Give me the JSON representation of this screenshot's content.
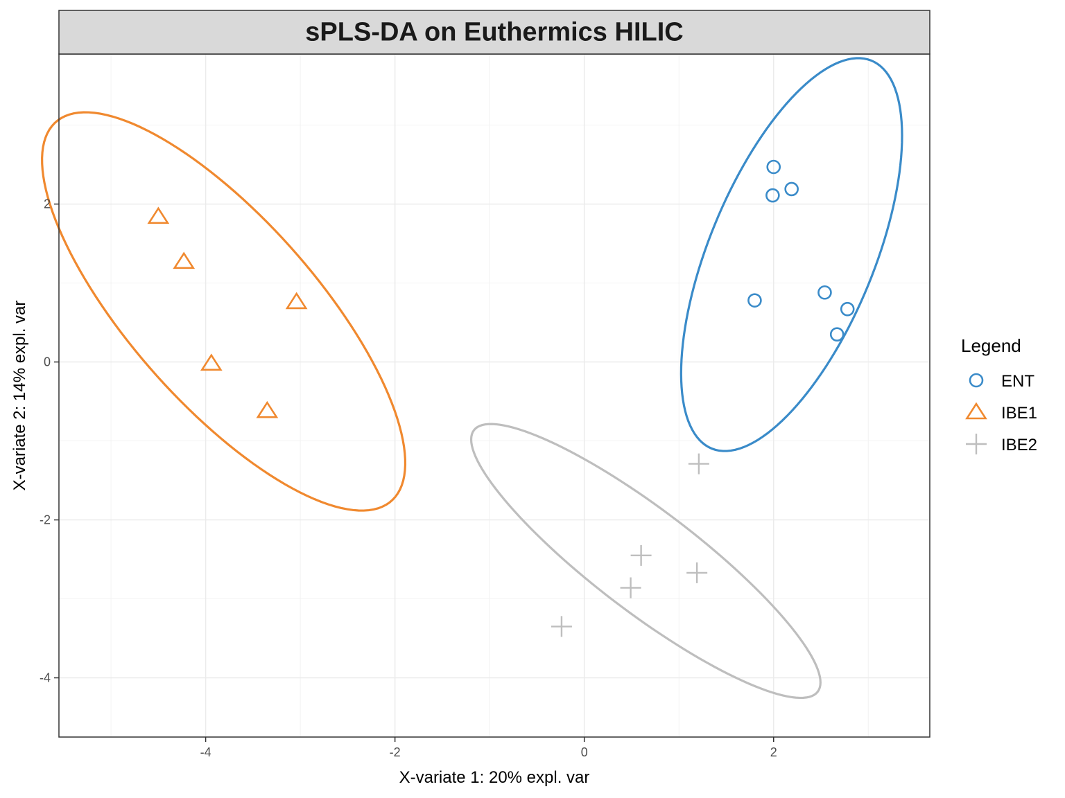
{
  "chart_data": {
    "type": "scatter",
    "title": "sPLS-DA on Euthermics HILIC",
    "xlabel": "X-variate 1: 20% expl. var",
    "ylabel": "X-variate 2: 14% expl. var",
    "xlim": [
      -5.55,
      3.65
    ],
    "ylim": [
      -4.75,
      3.9
    ],
    "x_ticks": [
      -4,
      -2,
      0,
      2
    ],
    "x_tick_labels": [
      "-4",
      "-2",
      "0",
      "2"
    ],
    "y_ticks": [
      -4,
      -2,
      0,
      2
    ],
    "y_tick_labels": [
      "-4",
      "-2",
      "0",
      "2"
    ],
    "grid": true,
    "legend": {
      "title": "Legend",
      "position": "right"
    },
    "series": [
      {
        "name": "ENT",
        "shape": "circle",
        "color": "#3A8BC9",
        "points": [
          {
            "x": 2.0,
            "y": 2.47
          },
          {
            "x": 1.99,
            "y": 2.11
          },
          {
            "x": 2.19,
            "y": 2.19
          },
          {
            "x": 1.8,
            "y": 0.78
          },
          {
            "x": 2.54,
            "y": 0.88
          },
          {
            "x": 2.78,
            "y": 0.67
          },
          {
            "x": 2.67,
            "y": 0.35
          }
        ],
        "ellipse": {
          "cx": 2.19,
          "cy": 1.36,
          "rx": 2.6,
          "ry": 0.89,
          "angle_deg": 72
        }
      },
      {
        "name": "IBE1",
        "shape": "triangle",
        "color": "#F0892F",
        "points": [
          {
            "x": -4.5,
            "y": 1.84
          },
          {
            "x": -4.23,
            "y": 1.27
          },
          {
            "x": -3.04,
            "y": 0.76
          },
          {
            "x": -3.94,
            "y": -0.02
          },
          {
            "x": -3.35,
            "y": -0.62
          }
        ],
        "ellipse": {
          "cx": -3.81,
          "cy": 0.64,
          "rx": 2.99,
          "ry": 1.05,
          "angle_deg": -55
        }
      },
      {
        "name": "IBE2",
        "shape": "plus",
        "color": "#BEBEBE",
        "points": [
          {
            "x": 1.21,
            "y": -1.29
          },
          {
            "x": 0.6,
            "y": -2.45
          },
          {
            "x": 1.19,
            "y": -2.67
          },
          {
            "x": 0.49,
            "y": -2.86
          },
          {
            "x": -0.24,
            "y": -3.35
          }
        ],
        "ellipse": {
          "cx": 0.65,
          "cy": -2.52,
          "rx": 2.46,
          "ry": 0.6,
          "angle_deg": -43
        }
      }
    ]
  }
}
